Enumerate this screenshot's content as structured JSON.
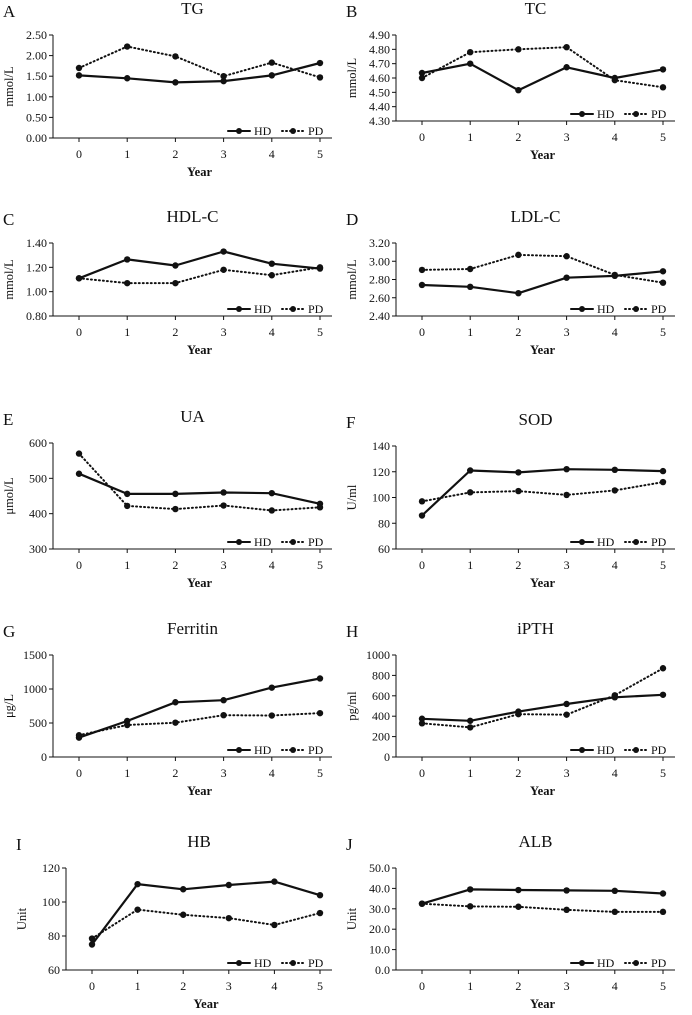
{
  "chart_data": [
    {
      "panel": "A",
      "title": "TG",
      "type": "line",
      "xlabel": "Year",
      "ylabel": "mmol/L",
      "x": [
        0,
        1,
        2,
        3,
        4,
        5
      ],
      "ylim": [
        0,
        2.5
      ],
      "yticks": [
        "0.00",
        "0.50",
        "1.00",
        "1.50",
        "2.00",
        "2.50"
      ],
      "series": [
        {
          "name": "HD",
          "style": "solid",
          "values": [
            1.52,
            1.45,
            1.35,
            1.38,
            1.52,
            1.82
          ]
        },
        {
          "name": "PD",
          "style": "dotted",
          "values": [
            1.7,
            2.22,
            1.98,
            1.5,
            1.83,
            1.47
          ]
        }
      ]
    },
    {
      "panel": "B",
      "title": "TC",
      "type": "line",
      "xlabel": "Year",
      "ylabel": "mmol/L",
      "x": [
        0,
        1,
        2,
        3,
        4,
        5
      ],
      "ylim": [
        4.3,
        4.9
      ],
      "yticks": [
        "4.30",
        "4.40",
        "4.50",
        "4.60",
        "4.70",
        "4.80",
        "4.90"
      ],
      "series": [
        {
          "name": "HD",
          "style": "solid",
          "values": [
            4.635,
            4.7,
            4.515,
            4.675,
            4.6,
            4.66
          ]
        },
        {
          "name": "PD",
          "style": "dotted",
          "values": [
            4.6,
            4.78,
            4.8,
            4.815,
            4.585,
            4.535
          ]
        }
      ]
    },
    {
      "panel": "C",
      "title": "HDL-C",
      "type": "line",
      "xlabel": "Year",
      "ylabel": "mmol/L",
      "x": [
        0,
        1,
        2,
        3,
        4,
        5
      ],
      "ylim": [
        0.8,
        1.4
      ],
      "yticks": [
        "0.80",
        "1.00",
        "1.20",
        "1.40"
      ],
      "series": [
        {
          "name": "HD",
          "style": "solid",
          "values": [
            1.11,
            1.265,
            1.215,
            1.33,
            1.23,
            1.19
          ]
        },
        {
          "name": "PD",
          "style": "dotted",
          "values": [
            1.11,
            1.07,
            1.07,
            1.18,
            1.135,
            1.2
          ]
        }
      ]
    },
    {
      "panel": "D",
      "title": "LDL-C",
      "type": "line",
      "xlabel": "Year",
      "ylabel": "mmol/L",
      "x": [
        0,
        1,
        2,
        3,
        4,
        5
      ],
      "ylim": [
        2.4,
        3.2
      ],
      "yticks": [
        "2.40",
        "2.60",
        "2.80",
        "3.00",
        "3.20"
      ],
      "series": [
        {
          "name": "HD",
          "style": "solid",
          "values": [
            2.74,
            2.72,
            2.65,
            2.82,
            2.84,
            2.89
          ]
        },
        {
          "name": "PD",
          "style": "dotted",
          "values": [
            2.905,
            2.915,
            3.07,
            3.055,
            2.85,
            2.765
          ]
        }
      ]
    },
    {
      "panel": "E",
      "title": "UA",
      "type": "line",
      "xlabel": "Year",
      "ylabel": "μmol/L",
      "x": [
        0,
        1,
        2,
        3,
        4,
        5
      ],
      "ylim": [
        300,
        600
      ],
      "yticks": [
        "300",
        "400",
        "500",
        "600"
      ],
      "series": [
        {
          "name": "HD",
          "style": "solid",
          "values": [
            513,
            456,
            456,
            460,
            458,
            428
          ]
        },
        {
          "name": "PD",
          "style": "dotted",
          "values": [
            570,
            422,
            413,
            423,
            409,
            418
          ]
        }
      ]
    },
    {
      "panel": "F",
      "title": "SOD",
      "type": "line",
      "xlabel": "Year",
      "ylabel": "U/ml",
      "x": [
        0,
        1,
        2,
        3,
        4,
        5
      ],
      "ylim": [
        60,
        140
      ],
      "yticks": [
        "60",
        "80",
        "100",
        "120",
        "140"
      ],
      "series": [
        {
          "name": "HD",
          "style": "solid",
          "values": [
            86,
            121,
            119.5,
            122,
            121.5,
            120.5
          ]
        },
        {
          "name": "PD",
          "style": "dotted",
          "values": [
            97,
            104,
            105,
            102,
            105.5,
            112
          ]
        }
      ]
    },
    {
      "panel": "G",
      "title": "Ferritin",
      "type": "line",
      "xlabel": "Year",
      "ylabel": "μg/L",
      "x": [
        0,
        1,
        2,
        3,
        4,
        5
      ],
      "ylim": [
        0,
        1500
      ],
      "yticks": [
        "0",
        "500",
        "1000",
        "1500"
      ],
      "series": [
        {
          "name": "HD",
          "style": "solid",
          "values": [
            285,
            530,
            805,
            835,
            1020,
            1155
          ]
        },
        {
          "name": "PD",
          "style": "dotted",
          "values": [
            320,
            470,
            505,
            615,
            610,
            645
          ]
        }
      ]
    },
    {
      "panel": "H",
      "title": "iPTH",
      "type": "line",
      "xlabel": "Year",
      "ylabel": "pg/ml",
      "x": [
        0,
        1,
        2,
        3,
        4,
        5
      ],
      "ylim": [
        0,
        1000
      ],
      "yticks": [
        "0",
        "200",
        "400",
        "600",
        "800",
        "1000"
      ],
      "series": [
        {
          "name": "HD",
          "style": "solid",
          "values": [
            375,
            355,
            445,
            520,
            585,
            610
          ]
        },
        {
          "name": "PD",
          "style": "dotted",
          "values": [
            330,
            290,
            420,
            415,
            605,
            870
          ]
        }
      ]
    },
    {
      "panel": "I",
      "title": "HB",
      "type": "line",
      "xlabel": "Year",
      "ylabel": "Unit",
      "x": [
        0,
        1,
        2,
        3,
        4,
        5
      ],
      "ylim": [
        60,
        120
      ],
      "yticks": [
        "60",
        "80",
        "100",
        "120"
      ],
      "series": [
        {
          "name": "HD",
          "style": "solid",
          "values": [
            75,
            110.5,
            107.5,
            110,
            112,
            104
          ]
        },
        {
          "name": "PD",
          "style": "dotted",
          "values": [
            78.5,
            95.5,
            92.5,
            90.5,
            86.5,
            93.5
          ]
        }
      ]
    },
    {
      "panel": "J",
      "title": "ALB",
      "type": "line",
      "xlabel": "Year",
      "ylabel": "Unit",
      "x": [
        0,
        1,
        2,
        3,
        4,
        5
      ],
      "ylim": [
        0,
        50
      ],
      "yticks": [
        "0.0",
        "10.0",
        "20.0",
        "30.0",
        "40.0",
        "50.0"
      ],
      "series": [
        {
          "name": "HD",
          "style": "solid",
          "values": [
            32.5,
            39.5,
            39.2,
            39,
            38.8,
            37.5
          ]
        },
        {
          "name": "PD",
          "style": "dotted",
          "values": [
            32.5,
            31.2,
            31,
            29.5,
            28.5,
            28.5
          ]
        }
      ]
    }
  ]
}
